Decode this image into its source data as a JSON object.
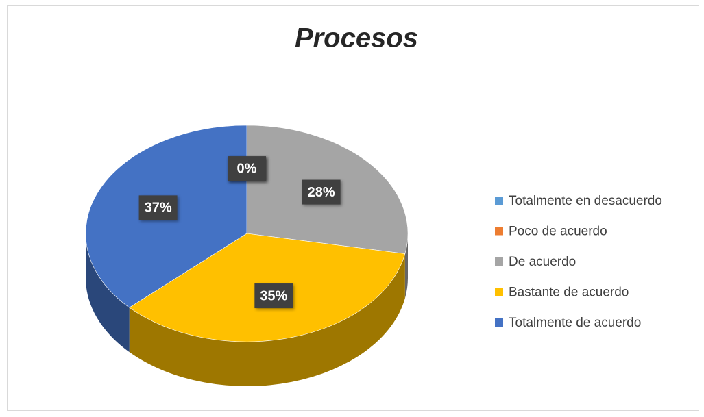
{
  "chart_data": {
    "type": "pie",
    "title": "Procesos",
    "categories": [
      "Totalmente en desacuerdo",
      "Poco de acuerdo",
      "De acuerdo",
      "Bastante de acuerdo",
      "Totalmente de acuerdo"
    ],
    "values": [
      0,
      0,
      28,
      35,
      37
    ],
    "value_labels": [
      "0%",
      "0%",
      "28%",
      "35%",
      "37%"
    ],
    "colors": [
      "#5b9bd5",
      "#ed7d31",
      "#a5a5a5",
      "#ffc000",
      "#4472c4"
    ],
    "legend": "right"
  }
}
